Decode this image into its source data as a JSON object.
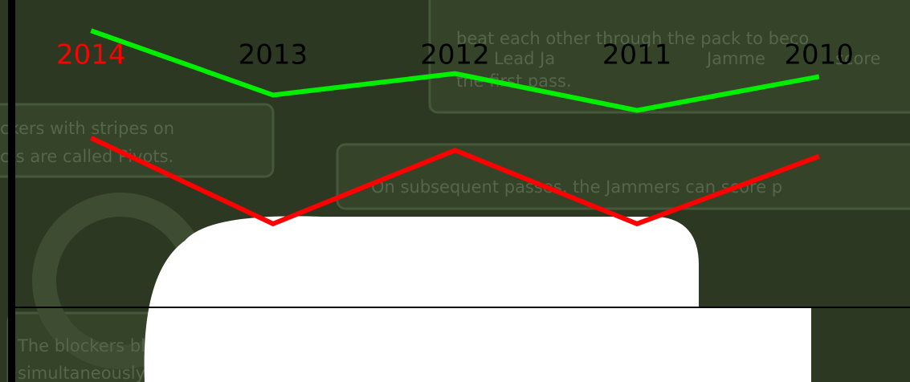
{
  "chart_data": {
    "type": "line",
    "categories": [
      "2014",
      "2013",
      "2012",
      "2011",
      "2010"
    ],
    "category_colors": [
      "#ff0000",
      "#000000",
      "#000000",
      "#000000",
      "#000000"
    ],
    "series": [
      {
        "color": "#00ee00",
        "values": [
          90,
          69,
          76,
          64,
          75
        ]
      },
      {
        "color": "#ff0000",
        "values": [
          55,
          27,
          51,
          27,
          49
        ]
      }
    ],
    "ylim": [
      0,
      100
    ]
  },
  "background": {
    "texts": [
      "beat each other through the pack to beco",
      "Lead Ja",
      "Jamme",
      "score",
      "the first pass.",
      "ckers with stripes on",
      "cts are called Pivots.",
      "On subsequent passes, the Jammers can score p",
      "The blockers block the opposing Jammer while",
      "simultaneously trying to get their Jammer through!"
    ]
  }
}
